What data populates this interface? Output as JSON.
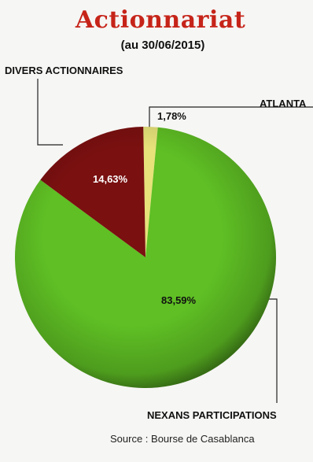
{
  "chart_data": {
    "type": "pie",
    "title": "Actionnariat",
    "subtitle": "(au 30/06/2015)",
    "slices": [
      {
        "label": "NEXANS PARTICIPATIONS",
        "value": 83.59,
        "value_label": "83,59%",
        "color": "#5fbf24"
      },
      {
        "label": "DIVERS ACTIONNAIRES",
        "value": 14.63,
        "value_label": "14,63%",
        "color": "#7a1010"
      },
      {
        "label": "ATLANTA",
        "value": 1.78,
        "value_label": "1,78%",
        "color": "#e7e27a"
      }
    ]
  },
  "source": "Source : Bourse de Casablanca"
}
